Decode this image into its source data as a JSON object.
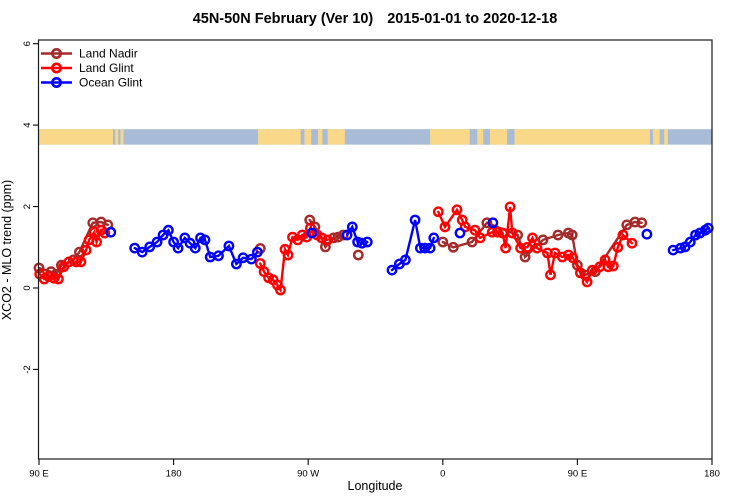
{
  "title": {
    "part1": "45N-50N February (Ver 10)",
    "part2": "2015-01-01 to 2020-12-18"
  },
  "chart_data": {
    "type": "line",
    "xlabel": "Longitude",
    "ylabel": "XCO2 - MLO trend (ppm)",
    "x_axis_note": "longitude axis wraps: 90E eastward to 180 (values stored as degrees 90..540)",
    "xlim": [
      90,
      540
    ],
    "ylim": [
      -4.2,
      6.09
    ],
    "x_ticks": [
      {
        "v": 90,
        "label": "90 E"
      },
      {
        "v": 180,
        "label": "180"
      },
      {
        "v": 270,
        "label": "90 W"
      },
      {
        "v": 360,
        "label": "0"
      },
      {
        "v": 450,
        "label": "90 E"
      },
      {
        "v": 540,
        "label": "180"
      }
    ],
    "y_ticks": [
      {
        "v": 6,
        "label": "6"
      },
      {
        "v": 4,
        "label": "4"
      },
      {
        "v": 2,
        "label": "2"
      },
      {
        "v": 0,
        "label": "0"
      },
      {
        "v": -2,
        "label": "-2"
      }
    ],
    "grid": false,
    "legend_position": "top-left",
    "series": [
      {
        "name": "Land Nadir",
        "color": "#A52A2A",
        "segments": [
          [
            [
              90,
              0.49
            ],
            [
              98,
              0.4
            ],
            [
              101.5,
              0.34
            ],
            [
              105,
              0.56
            ],
            [
              113,
              0.69
            ],
            [
              117,
              0.88
            ],
            [
              126,
              1.6
            ],
            [
              131.5,
              1.62
            ],
            [
              136,
              1.55
            ]
          ],
          [
            [
              238,
              0.97
            ]
          ],
          [
            [
              271,
              1.67
            ],
            [
              274.5,
              1.5
            ],
            [
              279,
              1.23
            ],
            [
              281.5,
              1.01
            ],
            [
              287,
              1.23
            ],
            [
              290,
              1.25
            ],
            [
              293.5,
              1.3
            ]
          ],
          [
            [
              303.5,
              0.81
            ]
          ],
          [
            [
              360,
              1.13
            ],
            [
              367,
              1.0
            ],
            [
              379.5,
              1.13
            ],
            [
              389.5,
              1.6
            ],
            [
              410,
              1.3
            ],
            [
              415,
              0.76
            ],
            [
              427,
              1.18
            ],
            [
              437,
              1.3
            ],
            [
              444,
              1.35
            ],
            [
              446.5,
              1.3
            ],
            [
              450,
              0.56
            ],
            [
              455,
              0.32
            ],
            [
              462,
              0.4
            ],
            [
              483,
              1.55
            ],
            [
              488.5,
              1.62
            ],
            [
              493,
              1.6
            ]
          ]
        ]
      },
      {
        "name": "Land Glint",
        "color": "#FF0000",
        "segments": [
          [
            [
              90.5,
              0.34
            ],
            [
              93.5,
              0.22
            ],
            [
              96.5,
              0.28
            ],
            [
              100,
              0.24
            ],
            [
              103,
              0.22
            ],
            [
              106.5,
              0.52
            ],
            [
              110,
              0.64
            ],
            [
              115,
              0.64
            ],
            [
              118,
              0.64
            ],
            [
              121.5,
              0.93
            ],
            [
              123.5,
              1.18
            ],
            [
              127,
              1.37
            ],
            [
              128.5,
              1.13
            ],
            [
              131.5,
              1.42
            ],
            [
              134,
              1.35
            ]
          ],
          [
            [
              238,
              0.6
            ],
            [
              240.5,
              0.4
            ],
            [
              243.5,
              0.25
            ],
            [
              246.5,
              0.2
            ],
            [
              249.5,
              0.07
            ],
            [
              251.5,
              -0.05
            ],
            [
              254.5,
              0.95
            ],
            [
              256.5,
              0.81
            ],
            [
              259.5,
              1.25
            ],
            [
              263,
              1.18
            ],
            [
              266,
              1.3
            ],
            [
              269,
              1.25
            ],
            [
              271.5,
              1.47
            ],
            [
              276,
              1.3
            ],
            [
              279,
              1.23
            ],
            [
              283,
              1.18
            ]
          ],
          [
            [
              357,
              1.87
            ],
            [
              361.5,
              1.5
            ],
            [
              369.5,
              1.92
            ],
            [
              373,
              1.67
            ],
            [
              375,
              1.5
            ],
            [
              381.5,
              1.42
            ],
            [
              385,
              1.23
            ],
            [
              393,
              1.37
            ],
            [
              396.5,
              1.37
            ],
            [
              400,
              1.35
            ],
            [
              402,
              0.98
            ],
            [
              405,
              1.99
            ],
            [
              406.5,
              1.35
            ],
            [
              412,
              0.98
            ],
            [
              416.5,
              1.0
            ],
            [
              420,
              1.23
            ],
            [
              423,
              0.98
            ],
            [
              430,
              0.86
            ],
            [
              432,
              0.32
            ],
            [
              435,
              0.86
            ],
            [
              440,
              0.76
            ],
            [
              444,
              0.81
            ],
            [
              447,
              0.74
            ],
            [
              452,
              0.37
            ],
            [
              456.5,
              0.15
            ],
            [
              460,
              0.44
            ],
            [
              465,
              0.52
            ],
            [
              468.5,
              0.69
            ],
            [
              470.5,
              0.52
            ],
            [
              474,
              0.54
            ],
            [
              477,
              1.0
            ],
            [
              480.5,
              1.3
            ],
            [
              486.5,
              1.1
            ]
          ]
        ]
      },
      {
        "name": "Ocean Glint",
        "color": "#0000FF",
        "segments": [
          [
            [
              138,
              1.37
            ]
          ],
          [
            [
              154,
              0.98
            ],
            [
              159,
              0.88
            ],
            [
              164,
              1.01
            ],
            [
              169,
              1.13
            ],
            [
              173,
              1.3
            ],
            [
              176.5,
              1.42
            ],
            [
              180,
              1.13
            ],
            [
              183,
              0.98
            ],
            [
              187.5,
              1.23
            ],
            [
              191,
              1.1
            ],
            [
              194.5,
              0.98
            ],
            [
              198,
              1.23
            ],
            [
              201,
              1.18
            ],
            [
              204.5,
              0.76
            ],
            [
              210,
              0.79
            ],
            [
              217,
              1.03
            ],
            [
              222,
              0.59
            ],
            [
              226.5,
              0.74
            ],
            [
              232,
              0.71
            ],
            [
              236,
              0.88
            ]
          ],
          [
            [
              272.5,
              1.35
            ]
          ],
          [
            [
              296,
              1.3
            ],
            [
              299.5,
              1.5
            ],
            [
              303,
              1.13
            ],
            [
              306,
              1.1
            ],
            [
              309.5,
              1.13
            ]
          ],
          [
            [
              326,
              0.44
            ],
            [
              331,
              0.59
            ],
            [
              335,
              0.69
            ],
            [
              341.5,
              1.67
            ],
            [
              345,
              0.98
            ],
            [
              348,
              0.98
            ],
            [
              351.5,
              0.98
            ],
            [
              354,
              1.23
            ]
          ],
          [
            [
              371.5,
              1.35
            ]
          ],
          [
            [
              393.5,
              1.6
            ]
          ],
          [
            [
              496.5,
              1.32
            ]
          ],
          [
            [
              514,
              0.93
            ],
            [
              519,
              0.98
            ],
            [
              522,
              1.01
            ],
            [
              525.5,
              1.13
            ],
            [
              529,
              1.3
            ],
            [
              532,
              1.35
            ],
            [
              535.5,
              1.42
            ],
            [
              537.5,
              1.47
            ]
          ]
        ]
      }
    ],
    "map_band": {
      "description": "coastline strip at 45N-50N drawn across the plot",
      "top_value": 3.9,
      "bottom_value": 3.52,
      "ocean_color": "#A8BCD8",
      "land_color": "#F9D88A",
      "ocean_extent": [
        90,
        540
      ],
      "land_spans": [
        [
          90,
          139.5
        ],
        [
          141,
          143
        ],
        [
          144.5,
          146.5
        ],
        [
          236.5,
          294.5
        ],
        [
          351.5,
          498.5
        ],
        [
          500.5,
          505
        ],
        [
          508,
          510.5
        ]
      ],
      "water_inside_land_spans": [
        [
          265,
          267.5
        ],
        [
          272,
          276.5
        ],
        [
          279.5,
          283
        ],
        [
          378,
          383
        ],
        [
          387,
          391.5
        ],
        [
          403,
          408
        ]
      ]
    }
  },
  "frame_color": "#1a1a1a"
}
